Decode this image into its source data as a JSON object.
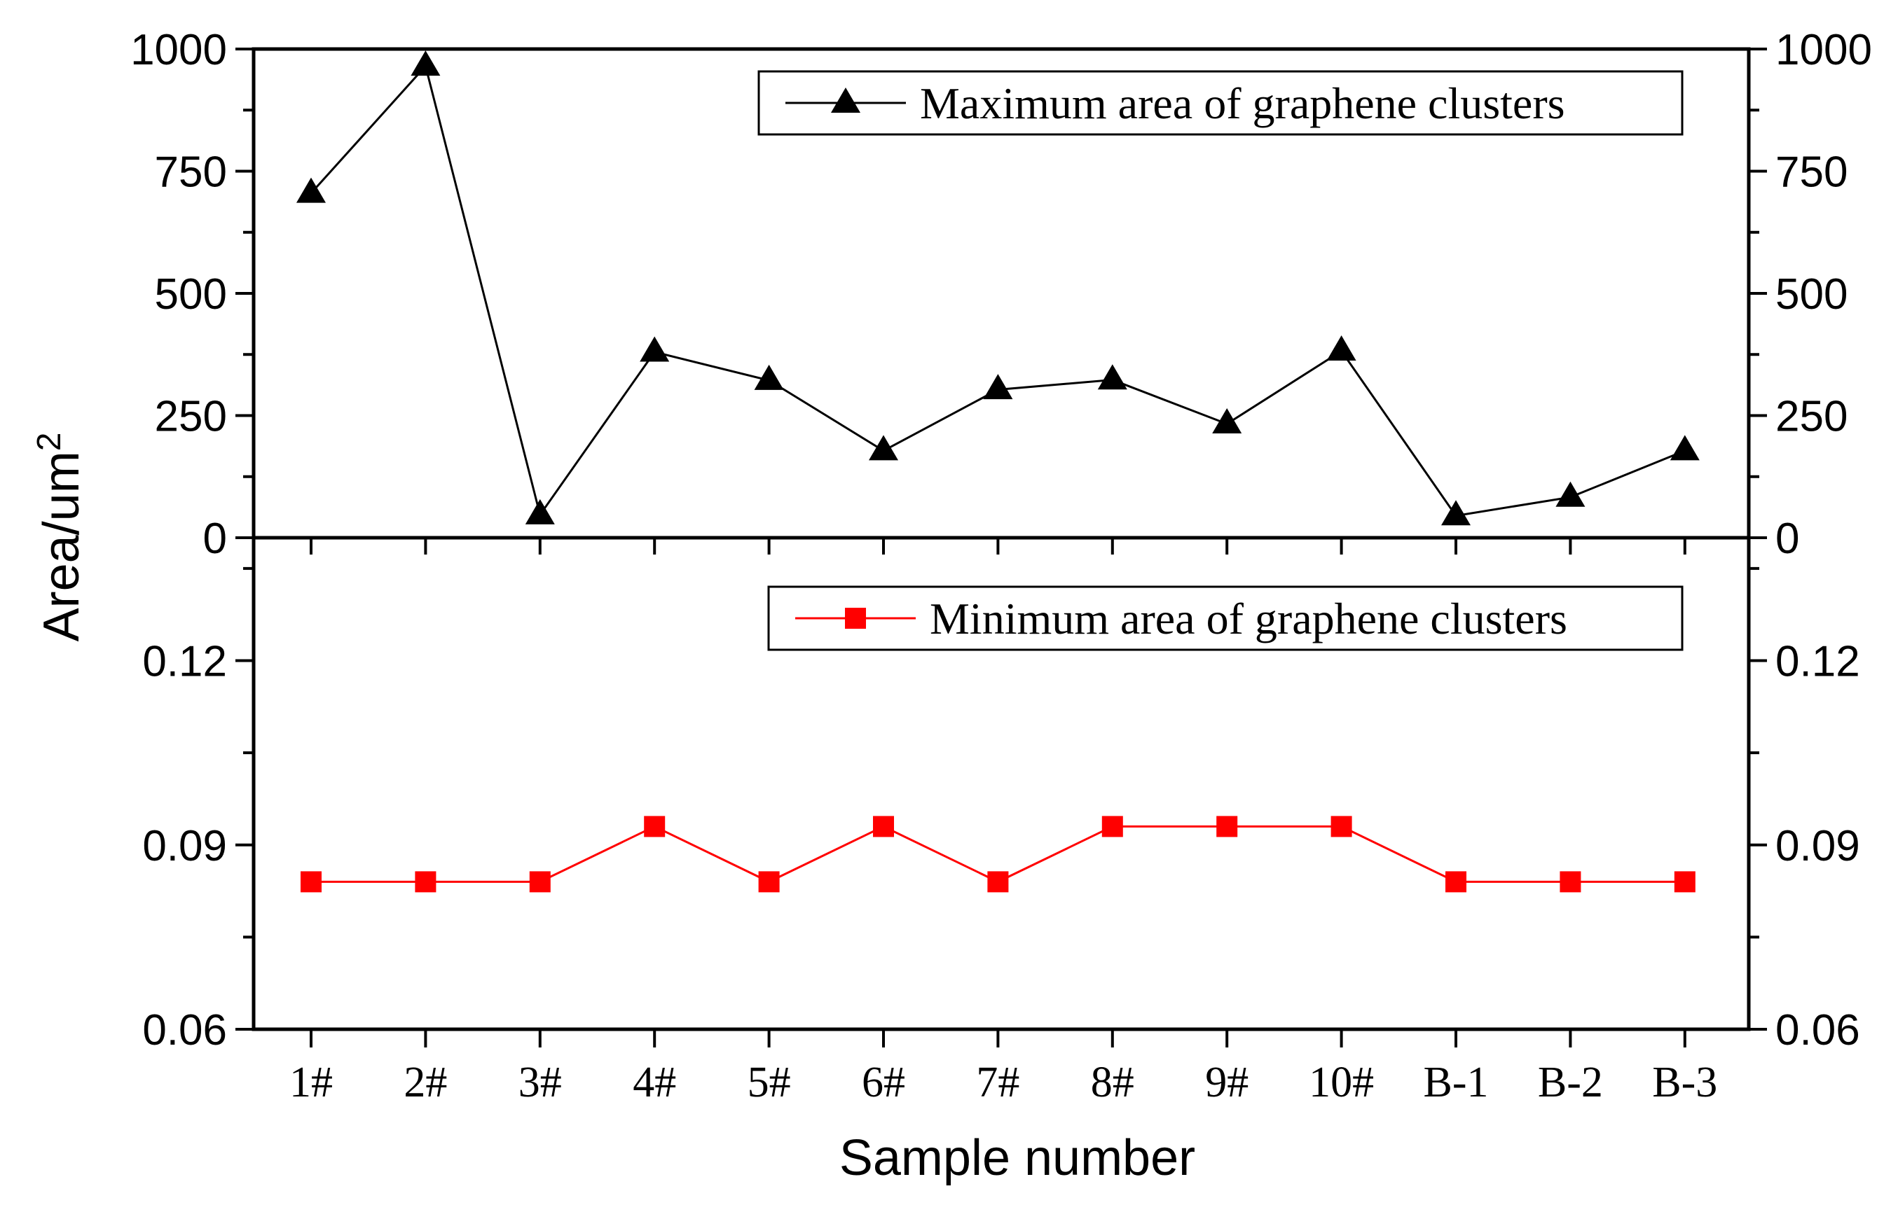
{
  "chart_data": [
    {
      "type": "line",
      "panel": "top",
      "categories": [
        "1#",
        "2#",
        "3#",
        "4#",
        "5#",
        "6#",
        "7#",
        "8#",
        "9#",
        "10#",
        "B-1",
        "B-2",
        "B-3"
      ],
      "series": [
        {
          "name": "Maximum area of graphene clusters",
          "values": [
            705,
            965,
            47,
            380,
            322,
            178,
            303,
            323,
            233,
            382,
            45,
            83,
            178
          ],
          "color": "#000000",
          "marker": "triangle"
        }
      ],
      "ylim": [
        0,
        1000
      ],
      "yticks": [
        "0",
        "250",
        "500",
        "750",
        "1000"
      ],
      "yticks_right": [
        "0",
        "250",
        "500",
        "750",
        "1000"
      ],
      "legend": "top-right"
    },
    {
      "type": "line",
      "panel": "bottom",
      "categories": [
        "1#",
        "2#",
        "3#",
        "4#",
        "5#",
        "6#",
        "7#",
        "8#",
        "9#",
        "10#",
        "B-1",
        "B-2",
        "B-3"
      ],
      "series": [
        {
          "name": "Minimum area of graphene clusters",
          "values": [
            0.084,
            0.084,
            0.084,
            0.093,
            0.084,
            0.093,
            0.084,
            0.093,
            0.093,
            0.093,
            0.084,
            0.084,
            0.084
          ],
          "color": "#ff0000",
          "marker": "square"
        }
      ],
      "ylim": [
        0.06,
        0.14
      ],
      "yticks": [
        "0.06",
        "0.09",
        "0.12"
      ],
      "yticks_right": [
        "0.06",
        "0.09",
        "0.12"
      ],
      "legend": "top-right"
    }
  ],
  "axes": {
    "ylabel_main": "Area/um",
    "ylabel_sup": "2",
    "xlabel": "Sample number"
  }
}
